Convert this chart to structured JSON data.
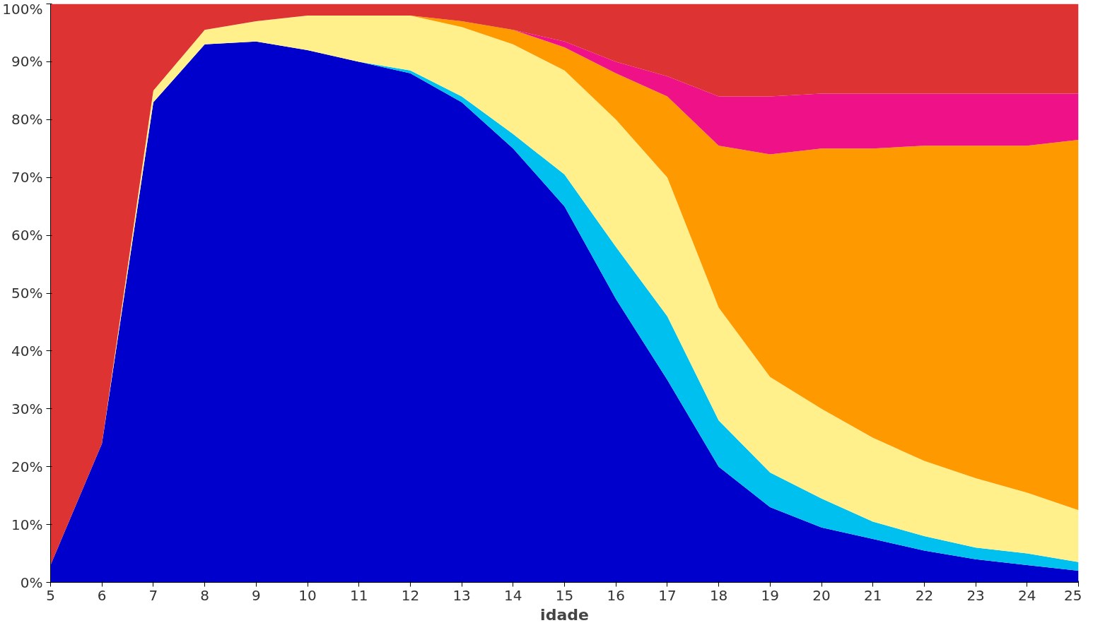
{
  "chart_data": {
    "type": "area",
    "stacked": true,
    "xlabel": "idade",
    "x": [
      5,
      6,
      7,
      8,
      9,
      10,
      11,
      12,
      13,
      14,
      15,
      16,
      17,
      18,
      19,
      20,
      21,
      22,
      23,
      24,
      25
    ],
    "xlim": [
      5,
      25
    ],
    "xticks": [
      5,
      6,
      7,
      8,
      9,
      10,
      11,
      12,
      13,
      14,
      15,
      16,
      17,
      18,
      19,
      20,
      21,
      22,
      23,
      24,
      25
    ],
    "ylim": [
      0,
      100
    ],
    "yticks": [
      {
        "value": 0,
        "label": "0%"
      },
      {
        "value": 10,
        "label": "10%"
      },
      {
        "value": 20,
        "label": "20%"
      },
      {
        "value": 30,
        "label": "30%"
      },
      {
        "value": 40,
        "label": "40%"
      },
      {
        "value": 50,
        "label": "50%"
      },
      {
        "value": 60,
        "label": "60%"
      },
      {
        "value": 70,
        "label": "70%"
      },
      {
        "value": 80,
        "label": "80%"
      },
      {
        "value": 90,
        "label": "90%"
      },
      {
        "value": 100,
        "label": "100%"
      }
    ],
    "grid": false,
    "series": [
      {
        "color": "#0000cc",
        "values": [
          3,
          24,
          83,
          93,
          93.5,
          92,
          90,
          88,
          83,
          75,
          65,
          49,
          35,
          20,
          13,
          9.5,
          7.5,
          5.5,
          4,
          3,
          2
        ]
      },
      {
        "color": "#00c0f0",
        "values": [
          null,
          null,
          null,
          null,
          null,
          null,
          0,
          0.5,
          1,
          2.5,
          5.5,
          9,
          11,
          8,
          6,
          5,
          3,
          2.5,
          2,
          2,
          1.5
        ]
      },
      {
        "color": "#fff08c",
        "values": [
          null,
          0,
          2,
          2.5,
          3.5,
          6,
          8,
          9.5,
          12,
          15.5,
          18,
          22,
          24,
          19.5,
          16.5,
          15.5,
          14.5,
          13,
          12,
          10.5,
          9
        ]
      },
      {
        "color": "#ff9900",
        "values": [
          null,
          null,
          null,
          null,
          null,
          null,
          null,
          0,
          1,
          2.5,
          4,
          8,
          14,
          28,
          38.5,
          45,
          50,
          54.5,
          57.5,
          60,
          64
        ]
      },
      {
        "color": "#ee1188",
        "values": [
          null,
          null,
          null,
          null,
          null,
          null,
          null,
          null,
          null,
          0,
          1,
          2,
          3.5,
          8.5,
          10,
          9.5,
          9.5,
          9,
          9,
          9,
          8
        ]
      },
      {
        "color": "#dd3333",
        "values": [
          97,
          76,
          15,
          4.5,
          3,
          2,
          2,
          2,
          3,
          4.5,
          6.5,
          10,
          12.5,
          16,
          16,
          15.5,
          15.5,
          15.5,
          15.5,
          15.5,
          15.5
        ]
      }
    ]
  }
}
